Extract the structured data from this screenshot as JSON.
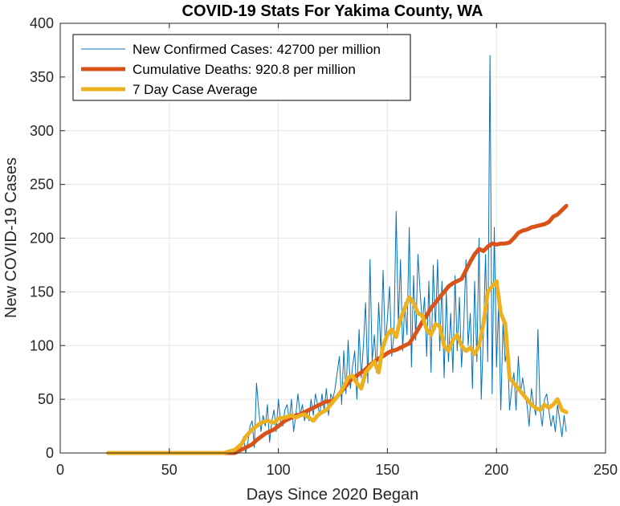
{
  "chart_data": {
    "type": "line",
    "title": "COVID-19 Stats For Yakima County, WA",
    "xlabel": "Days Since 2020 Began",
    "ylabel": "New COVID-19 Cases",
    "xlim": [
      0,
      250
    ],
    "ylim": [
      0,
      400
    ],
    "xticks": [
      0,
      50,
      100,
      150,
      200,
      250
    ],
    "yticks": [
      0,
      50,
      100,
      150,
      200,
      250,
      300,
      350,
      400
    ],
    "grid": true,
    "legend_position": "top-left",
    "series": [
      {
        "name": "New Confirmed Cases: 42700 per million",
        "color": "#0072BD",
        "style": "thin",
        "x": [
          22,
          40,
          60,
          70,
          78,
          81,
          82,
          83,
          84,
          85,
          86,
          87,
          88,
          89,
          90,
          91,
          92,
          93,
          94,
          95,
          96,
          97,
          98,
          99,
          100,
          101,
          102,
          103,
          104,
          105,
          106,
          107,
          108,
          109,
          110,
          111,
          112,
          113,
          114,
          115,
          116,
          117,
          118,
          119,
          120,
          121,
          122,
          123,
          124,
          125,
          126,
          127,
          128,
          129,
          130,
          131,
          132,
          133,
          134,
          135,
          136,
          137,
          138,
          139,
          140,
          141,
          142,
          143,
          144,
          145,
          146,
          147,
          148,
          149,
          150,
          151,
          152,
          153,
          154,
          155,
          156,
          157,
          158,
          159,
          160,
          161,
          162,
          163,
          164,
          165,
          166,
          167,
          168,
          169,
          170,
          171,
          172,
          173,
          174,
          175,
          176,
          177,
          178,
          179,
          180,
          181,
          182,
          183,
          184,
          185,
          186,
          187,
          188,
          189,
          190,
          191,
          192,
          193,
          194,
          195,
          196,
          197,
          198,
          199,
          200,
          201,
          202,
          203,
          204,
          205,
          206,
          207,
          208,
          209,
          210,
          211,
          212,
          213,
          214,
          215,
          216,
          217,
          218,
          219,
          220,
          221,
          222,
          223,
          224,
          225,
          226,
          227,
          228,
          229,
          230,
          231,
          232
        ],
        "y": [
          0,
          0,
          0,
          0,
          0,
          2,
          0,
          5,
          15,
          0,
          10,
          25,
          30,
          5,
          65,
          40,
          20,
          35,
          25,
          45,
          10,
          30,
          40,
          20,
          50,
          30,
          25,
          40,
          45,
          30,
          50,
          20,
          35,
          55,
          35,
          45,
          30,
          40,
          30,
          50,
          35,
          55,
          45,
          35,
          55,
          40,
          60,
          35,
          55,
          50,
          60,
          75,
          90,
          45,
          95,
          55,
          105,
          60,
          80,
          95,
          50,
          115,
          70,
          100,
          140,
          65,
          180,
          85,
          110,
          75,
          140,
          95,
          170,
          100,
          125,
          155,
          90,
          110,
          225,
          120,
          180,
          95,
          140,
          110,
          210,
          80,
          165,
          105,
          185,
          150,
          120,
          145,
          90,
          160,
          75,
          175,
          115,
          180,
          95,
          160,
          70,
          150,
          85,
          130,
          75,
          165,
          95,
          145,
          80,
          120,
          180,
          100,
          130,
          60,
          160,
          85,
          200,
          50,
          110,
          185,
          85,
          370,
          55,
          210,
          80,
          140,
          40,
          120,
          85,
          100,
          40,
          60,
          75,
          40,
          90,
          55,
          70,
          55,
          45,
          25,
          60,
          45,
          35,
          115,
          40,
          25,
          50,
          55,
          40,
          25,
          35,
          20,
          45,
          30,
          15,
          35,
          20
        ]
      },
      {
        "name": "Cumulative Deaths: 920.8 per million",
        "color": "#D95319",
        "style": "thick",
        "x": [
          22,
          60,
          80,
          82,
          85,
          88,
          90,
          92,
          94,
          96,
          98,
          100,
          103,
          106,
          108,
          110,
          112,
          114,
          116,
          118,
          120,
          122,
          124,
          126,
          128,
          130,
          132,
          134,
          136,
          138,
          140,
          142,
          144,
          146,
          148,
          150,
          152,
          154,
          156,
          158,
          160,
          162,
          164,
          166,
          168,
          170,
          172,
          174,
          176,
          178,
          180,
          182,
          184,
          186,
          188,
          190,
          192,
          194,
          196,
          198,
          200,
          202,
          204,
          206,
          208,
          210,
          212,
          214,
          216,
          218,
          220,
          222,
          224,
          226,
          228,
          230,
          232
        ],
        "y": [
          0,
          0,
          0,
          2,
          5,
          8,
          12,
          15,
          18,
          20,
          22,
          25,
          30,
          33,
          35,
          36,
          38,
          40,
          42,
          44,
          46,
          48,
          48,
          50,
          55,
          60,
          65,
          70,
          72,
          75,
          78,
          82,
          85,
          88,
          90,
          93,
          95,
          96,
          98,
          100,
          102,
          108,
          115,
          122,
          128,
          135,
          140,
          145,
          150,
          155,
          158,
          160,
          162,
          170,
          178,
          185,
          190,
          188,
          192,
          195,
          194,
          195,
          195,
          196,
          200,
          205,
          207,
          208,
          210,
          211,
          212,
          213,
          215,
          220,
          222,
          226,
          230
        ]
      },
      {
        "name": "7 Day Case Average",
        "color": "#EDB120",
        "style": "thick",
        "x": [
          22,
          60,
          75,
          80,
          83,
          85,
          88,
          90,
          92,
          95,
          98,
          100,
          103,
          106,
          108,
          110,
          112,
          114,
          116,
          118,
          120,
          122,
          124,
          126,
          128,
          130,
          132,
          134,
          136,
          138,
          140,
          142,
          144,
          146,
          148,
          150,
          152,
          154,
          156,
          158,
          160,
          162,
          164,
          166,
          168,
          170,
          172,
          174,
          176,
          178,
          180,
          182,
          184,
          186,
          188,
          190,
          192,
          194,
          196,
          198,
          200,
          202,
          204,
          206,
          208,
          210,
          212,
          214,
          216,
          218,
          220,
          222,
          224,
          226,
          228,
          230,
          232
        ],
        "y": [
          0,
          0,
          0,
          3,
          8,
          15,
          22,
          25,
          28,
          30,
          28,
          32,
          33,
          35,
          33,
          35,
          36,
          33,
          30,
          35,
          38,
          40,
          45,
          50,
          55,
          62,
          70,
          72,
          65,
          60,
          75,
          80,
          85,
          75,
          100,
          110,
          115,
          108,
          125,
          135,
          145,
          140,
          130,
          128,
          115,
          110,
          120,
          118,
          100,
          95,
          105,
          110,
          100,
          95,
          98,
          92,
          100,
          120,
          150,
          155,
          160,
          130,
          120,
          70,
          65,
          60,
          55,
          50,
          45,
          42,
          40,
          45,
          42,
          45,
          50,
          40,
          38
        ]
      }
    ]
  }
}
